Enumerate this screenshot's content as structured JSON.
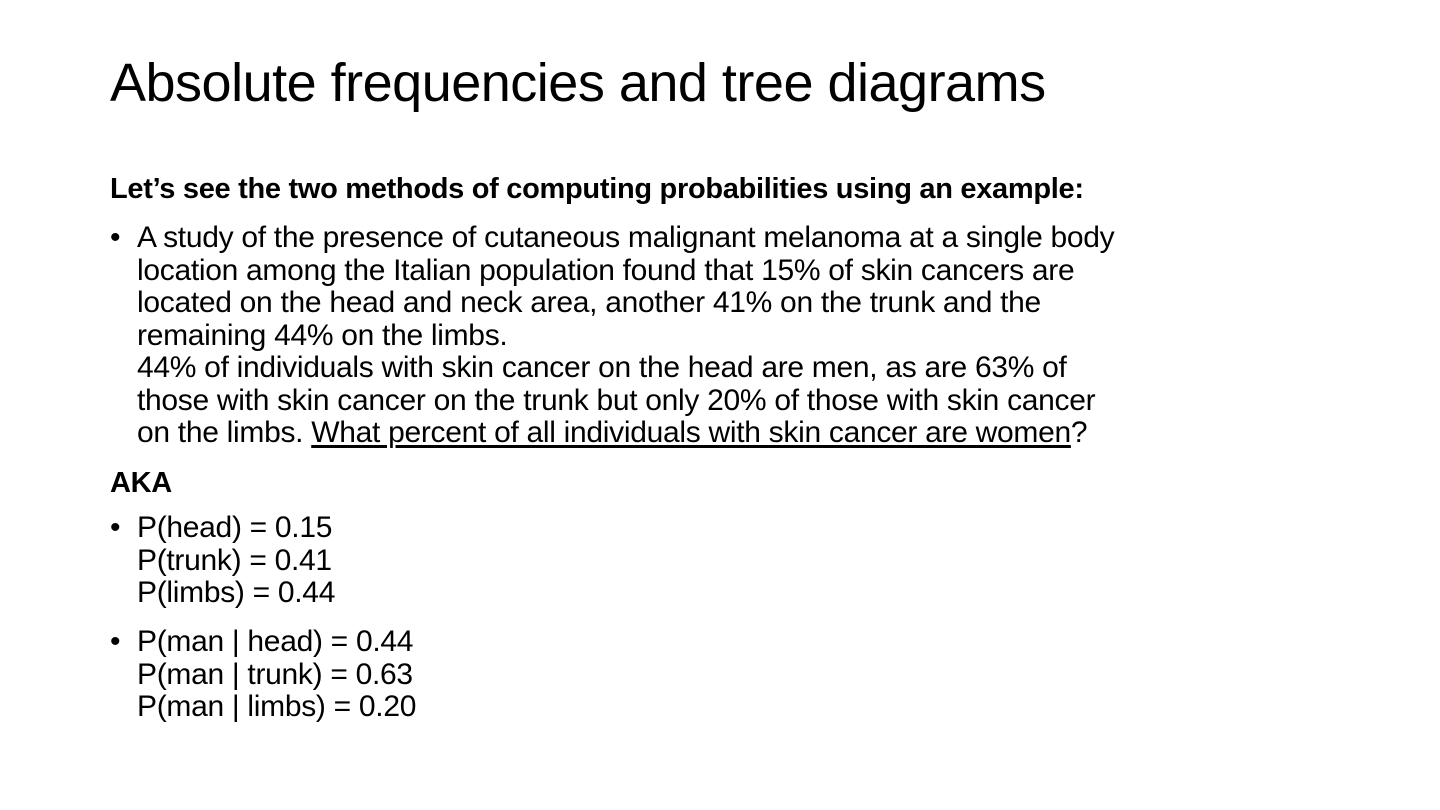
{
  "slide": {
    "title": "Absolute frequencies and tree diagrams",
    "intro_heading": "Let’s see the two methods of computing probabilities using an example:",
    "study_bullet": {
      "lines": [
        "A study of the presence of cutaneous malignant melanoma at a single body",
        "location among the Italian population found that 15% of skin cancers are",
        "located on the head and neck area, another 41% on the trunk and the",
        "remaining 44% on the limbs.",
        "44% of individuals with skin cancer on the head are men, as are 63% of",
        "those with skin cancer on the trunk but only 20% of those with skin cancer"
      ],
      "last_line_prefix": "on the limbs. ",
      "question": "What percent of all individuals with skin cancer are women",
      "question_suffix": "?"
    },
    "aka_heading": "AKA",
    "location_probs": [
      "P(head) = 0.15",
      "P(trunk) = 0.41",
      "P(limbs) = 0.44"
    ],
    "conditional_probs": [
      "P(man | head) = 0.44",
      "P(man | trunk) = 0.63",
      "P(man | limbs) = 0.20"
    ],
    "bullet_glyph": "•"
  }
}
